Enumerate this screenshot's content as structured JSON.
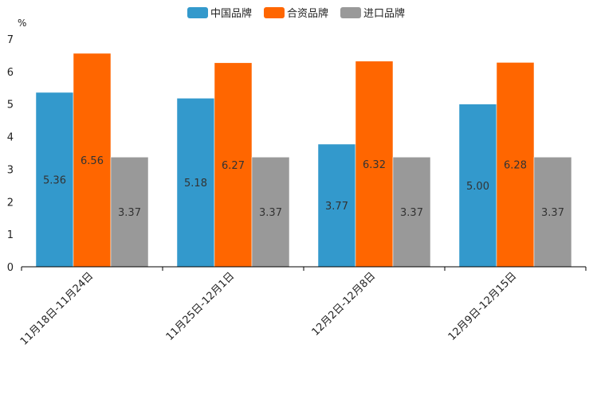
{
  "chart_data": {
    "type": "bar",
    "title": "",
    "xlabel": "",
    "ylabel": "%",
    "ylim": [
      0,
      7
    ],
    "yticks": [
      0,
      1,
      2,
      3,
      4,
      5,
      6,
      7
    ],
    "categories": [
      "11月18日-11月24日",
      "11月25日-12月1日",
      "12月2日-12月8日",
      "12月9日-12月15日"
    ],
    "series": [
      {
        "name": "中国品牌",
        "color": "#3399cc",
        "values": [
          5.36,
          5.18,
          3.77,
          5.0
        ],
        "labels": [
          "5.36",
          "5.18",
          "3.77",
          "5.00"
        ]
      },
      {
        "name": "合资品牌",
        "color": "#ff6600",
        "values": [
          6.56,
          6.27,
          6.32,
          6.28
        ],
        "labels": [
          "6.56",
          "6.27",
          "6.32",
          "6.28"
        ]
      },
      {
        "name": "进口品牌",
        "color": "#999999",
        "values": [
          3.37,
          3.37,
          3.37,
          3.37
        ],
        "labels": [
          "3.37",
          "3.37",
          "3.37",
          "3.37"
        ]
      }
    ],
    "legend_position": "top-center",
    "grid": false
  }
}
